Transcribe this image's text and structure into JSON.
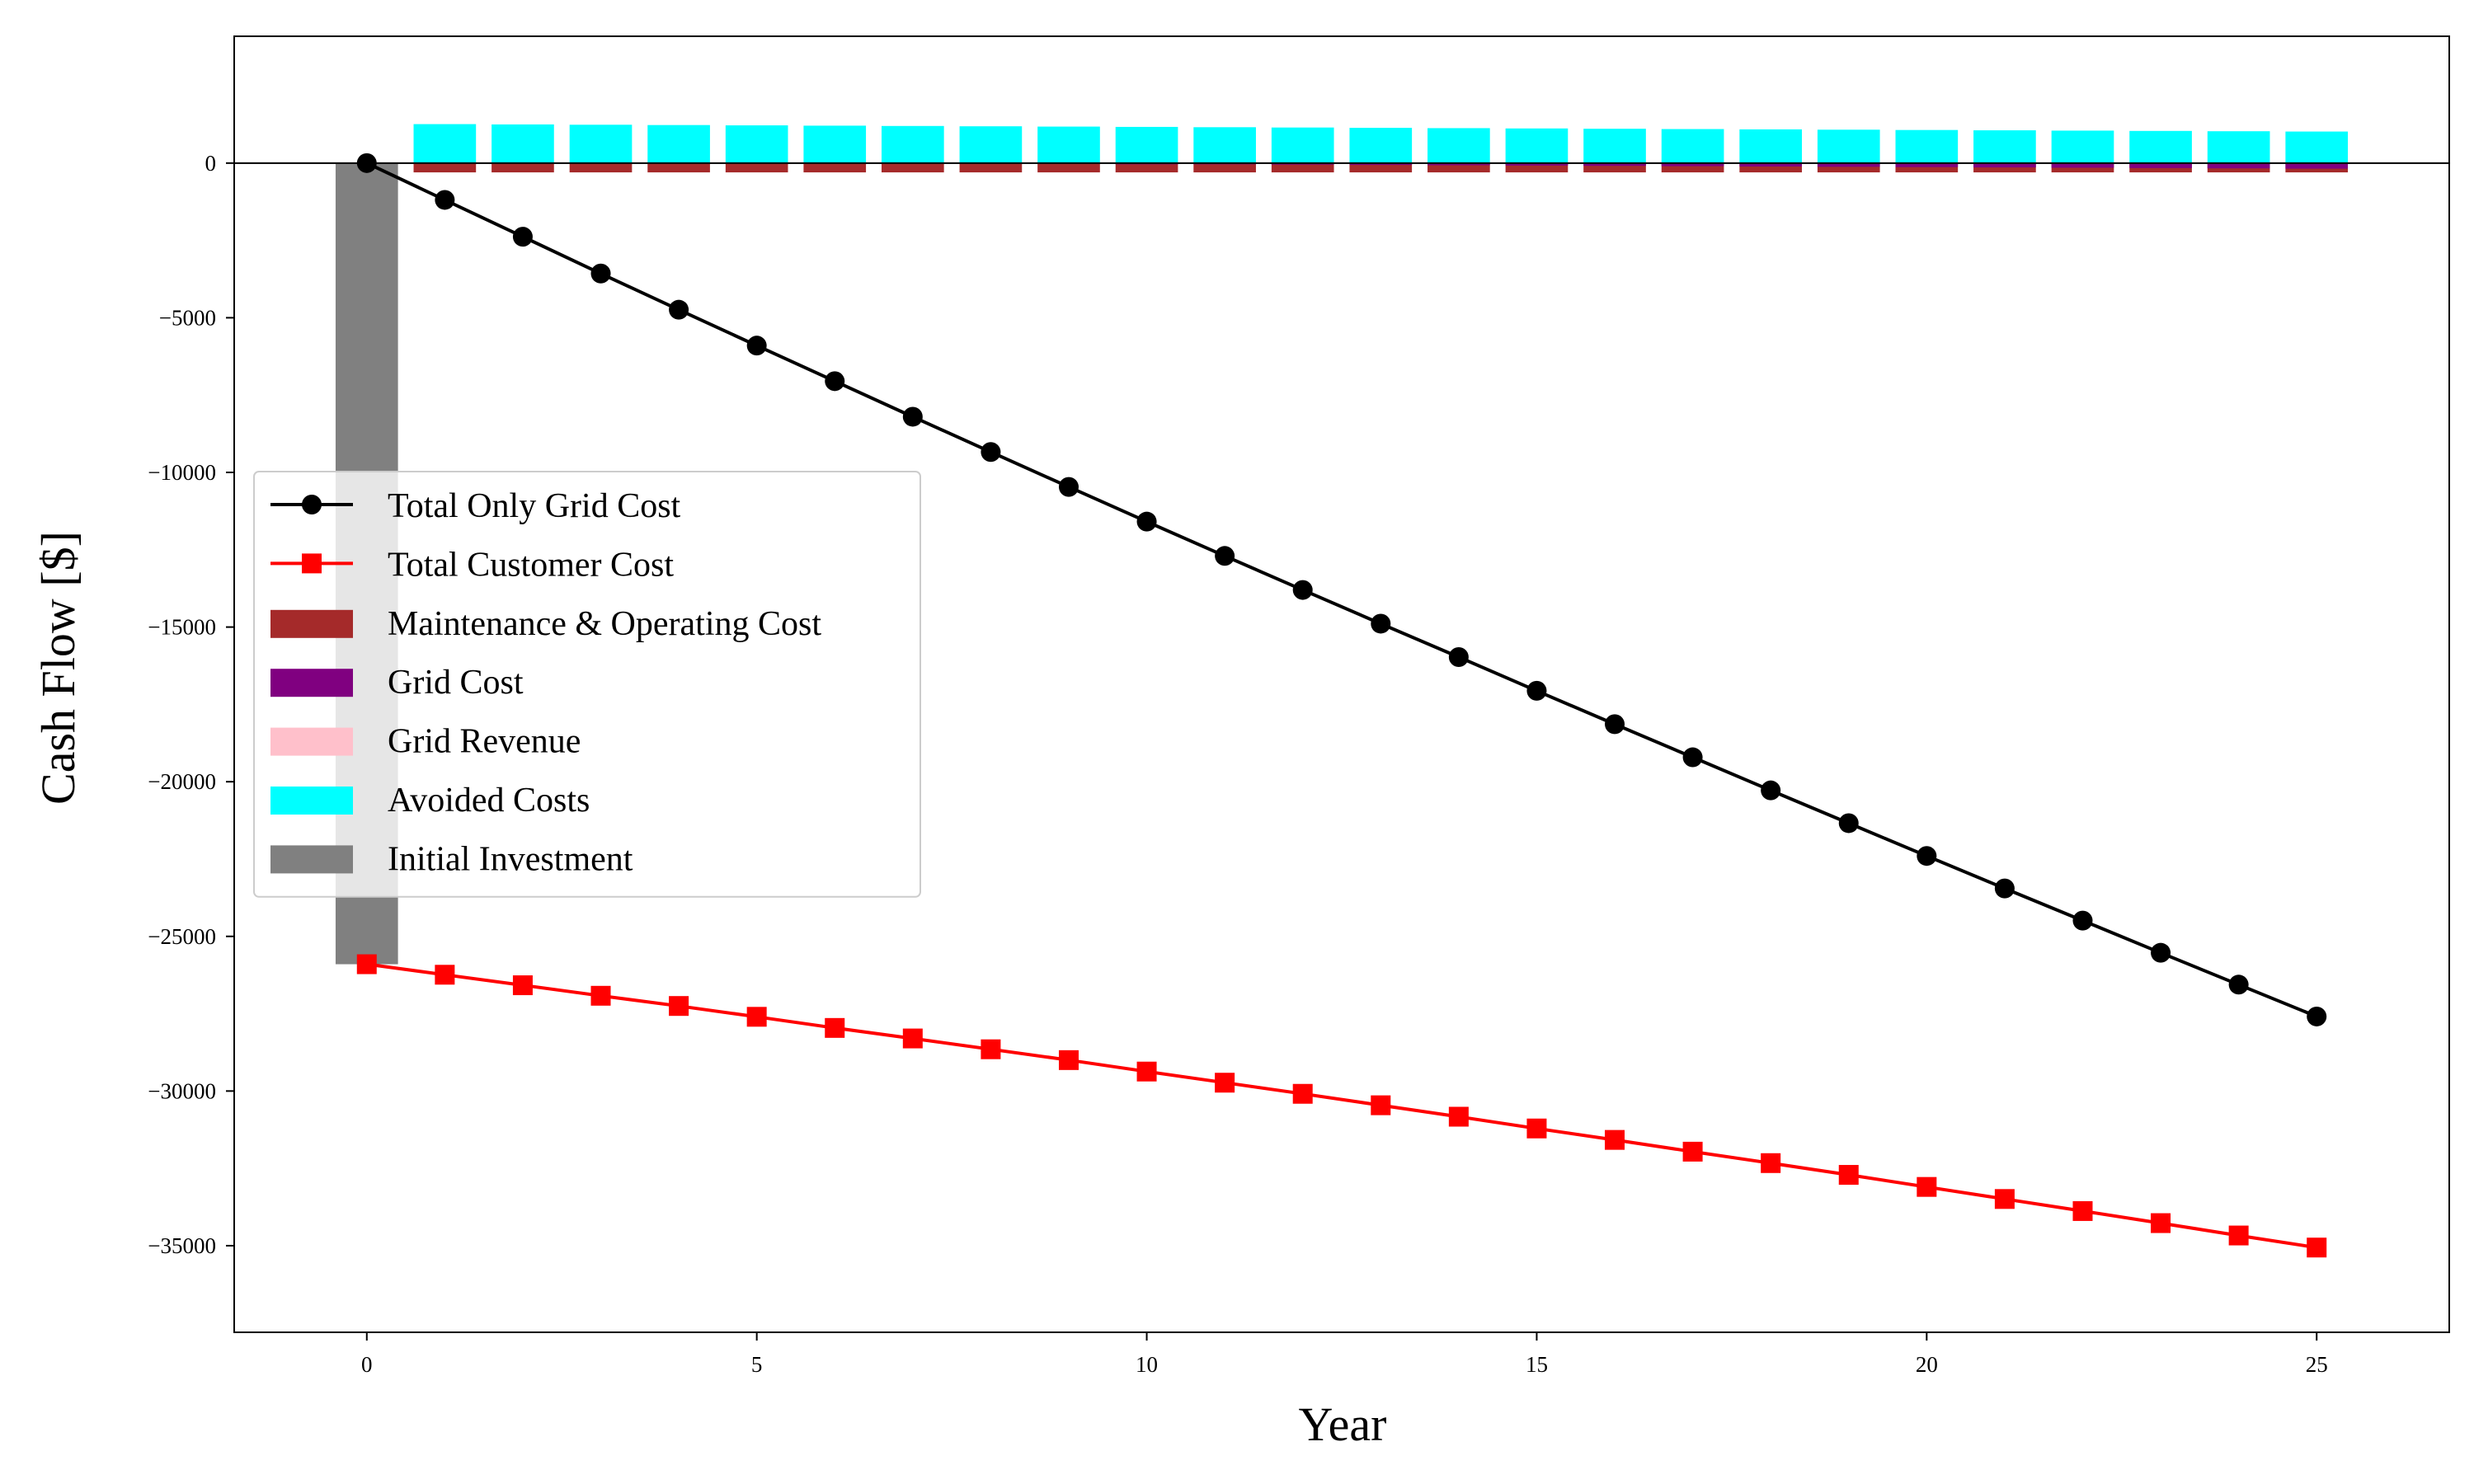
{
  "chart_data": {
    "type": "bar+line",
    "title": "",
    "xlabel": "Year",
    "ylabel": "Cash Flow [$]",
    "xlim": [
      -1.7,
      26.7
    ],
    "ylim": [
      -37800,
      4100
    ],
    "xticks": [
      0,
      5,
      10,
      15,
      20,
      25
    ],
    "xtick_labels": [
      "0",
      "5",
      "10",
      "15",
      "20",
      "25"
    ],
    "yticks": [
      0,
      -5000,
      -10000,
      -15000,
      -20000,
      -25000,
      -30000,
      -35000
    ],
    "ytick_labels": [
      "0",
      "−5000",
      "−10000",
      "−15000",
      "−20000",
      "−25000",
      "−30000",
      "−35000"
    ],
    "zero_line": true,
    "legend_position": "center-left",
    "years": [
      0,
      1,
      2,
      3,
      4,
      5,
      6,
      7,
      8,
      9,
      10,
      11,
      12,
      13,
      14,
      15,
      16,
      17,
      18,
      19,
      20,
      21,
      22,
      23,
      24,
      25
    ],
    "line_series": [
      {
        "name": "Total Only Grid Cost",
        "color": "#000000",
        "marker": "circle",
        "values": [
          0,
          -1190,
          -2380,
          -3570,
          -4740,
          -5900,
          -7050,
          -8200,
          -9340,
          -10470,
          -11590,
          -12700,
          -13800,
          -14890,
          -15970,
          -17060,
          -18140,
          -19210,
          -20280,
          -21340,
          -22400,
          -23450,
          -24490,
          -25530,
          -26560,
          -27590
        ]
      },
      {
        "name": "Total Customer Cost",
        "color": "#ff0000",
        "marker": "square",
        "values": [
          -25900,
          -26240,
          -26580,
          -26920,
          -27250,
          -27600,
          -27960,
          -28300,
          -28650,
          -29000,
          -29370,
          -29730,
          -30090,
          -30460,
          -30830,
          -31210,
          -31580,
          -31960,
          -32330,
          -32710,
          -33100,
          -33490,
          -33880,
          -34270,
          -34670,
          -35060
        ]
      }
    ],
    "bar_series": [
      {
        "name": "Maintenance & Operating Cost",
        "color": "#a52a2a",
        "years": [
          1,
          2,
          3,
          4,
          5,
          6,
          7,
          8,
          9,
          10,
          11,
          12,
          13,
          14,
          15,
          16,
          17,
          18,
          19,
          20,
          21,
          22,
          23,
          24,
          25
        ],
        "values": [
          -300,
          -300,
          -300,
          -300,
          -300,
          -300,
          -300,
          -300,
          -300,
          -300,
          -300,
          -300,
          -300,
          -300,
          -300,
          -300,
          -300,
          -300,
          -300,
          -300,
          -300,
          -300,
          -300,
          -300,
          -300
        ]
      },
      {
        "name": "Grid Cost",
        "color": "#800080",
        "years": [
          1,
          2,
          3,
          4,
          5,
          6,
          7,
          8,
          9,
          10,
          11,
          12,
          13,
          14,
          15,
          16,
          17,
          18,
          19,
          20,
          21,
          22,
          23,
          24,
          25
        ],
        "values": [
          -20,
          -20,
          -20,
          -20,
          -20,
          -20,
          -20,
          -30,
          -30,
          -40,
          -40,
          -50,
          -60,
          -70,
          -80,
          -90,
          -100,
          -110,
          -120,
          -130,
          -140,
          -150,
          -160,
          -170,
          -180
        ]
      },
      {
        "name": "Grid Revenue",
        "color": "#ffc0cb",
        "years": [
          1,
          2,
          3,
          4,
          5,
          6,
          7,
          8,
          9,
          10,
          11,
          12,
          13,
          14,
          15,
          16,
          17,
          18,
          19,
          20,
          21,
          22,
          23,
          24,
          25
        ],
        "values": [
          0,
          0,
          0,
          0,
          0,
          0,
          0,
          0,
          0,
          0,
          0,
          0,
          0,
          0,
          0,
          0,
          0,
          0,
          0,
          0,
          0,
          0,
          0,
          0,
          0
        ]
      },
      {
        "name": "Avoided Costs",
        "color": "#00ffff",
        "years": [
          1,
          2,
          3,
          4,
          5,
          6,
          7,
          8,
          9,
          10,
          11,
          12,
          13,
          14,
          15,
          16,
          17,
          18,
          19,
          20,
          21,
          22,
          23,
          24,
          25
        ],
        "values": [
          1260,
          1250,
          1240,
          1230,
          1220,
          1210,
          1200,
          1190,
          1180,
          1170,
          1160,
          1150,
          1140,
          1130,
          1120,
          1110,
          1100,
          1090,
          1080,
          1070,
          1060,
          1050,
          1040,
          1030,
          1020
        ]
      },
      {
        "name": "Initial Investment",
        "color": "#808080",
        "years": [
          0
        ],
        "values": [
          -25900
        ]
      }
    ],
    "legend": [
      {
        "label": "Total Only Grid Cost",
        "kind": "line",
        "marker": "circle",
        "color": "#000000"
      },
      {
        "label": "Total Customer Cost",
        "kind": "line",
        "marker": "square",
        "color": "#ff0000"
      },
      {
        "label": "Maintenance & Operating Cost",
        "kind": "patch",
        "color": "#a52a2a"
      },
      {
        "label": "Grid Cost",
        "kind": "patch",
        "color": "#800080"
      },
      {
        "label": "Grid Revenue",
        "kind": "patch",
        "color": "#ffc0cb"
      },
      {
        "label": "Avoided Costs",
        "kind": "patch",
        "color": "#00ffff"
      },
      {
        "label": "Initial Investment",
        "kind": "patch",
        "color": "#808080"
      }
    ]
  }
}
